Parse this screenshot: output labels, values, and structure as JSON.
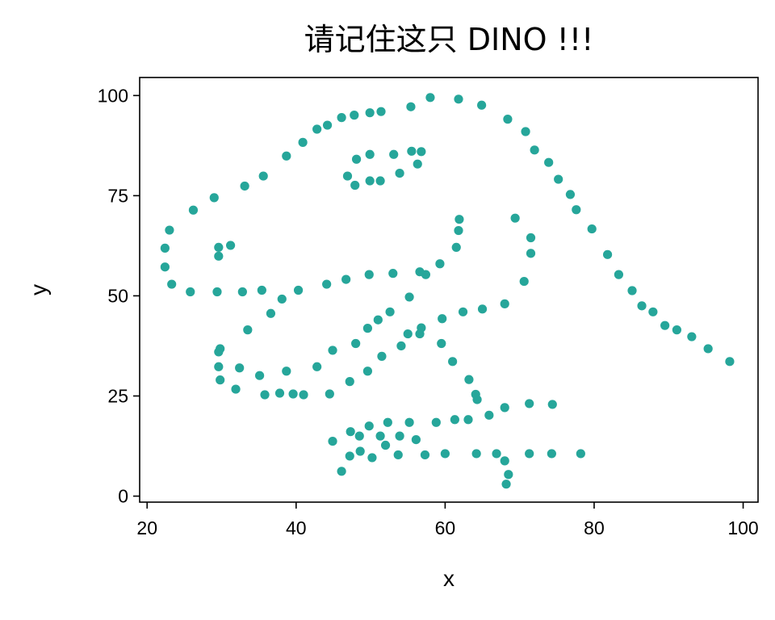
{
  "chart_data": {
    "type": "scatter",
    "title": "请记住这只 DINO !!!",
    "xlabel": "x",
    "ylabel": "y",
    "xlim": [
      19,
      102
    ],
    "ylim": [
      -1.5,
      104.5
    ],
    "xticks": [
      20,
      40,
      60,
      80,
      100
    ],
    "yticks": [
      0,
      25,
      50,
      75,
      100
    ],
    "xtick_labels": [
      "20",
      "40",
      "60",
      "80",
      "100"
    ],
    "ytick_labels": [
      "0",
      "25",
      "50",
      "75",
      "100"
    ],
    "grid": false,
    "legend": null,
    "marker_color": "#26a69a",
    "points": [
      [
        55.4,
        97.2
      ],
      [
        58.0,
        99.5
      ],
      [
        61.8,
        99.1
      ],
      [
        64.9,
        97.6
      ],
      [
        68.4,
        94.1
      ],
      [
        70.8,
        91.0
      ],
      [
        72.0,
        86.4
      ],
      [
        73.9,
        83.3
      ],
      [
        75.2,
        79.1
      ],
      [
        76.8,
        75.3
      ],
      [
        77.6,
        71.5
      ],
      [
        79.7,
        66.7
      ],
      [
        81.8,
        60.3
      ],
      [
        83.3,
        55.3
      ],
      [
        85.1,
        51.3
      ],
      [
        86.4,
        47.5
      ],
      [
        87.9,
        46.0
      ],
      [
        89.5,
        42.6
      ],
      [
        91.1,
        41.5
      ],
      [
        93.1,
        39.8
      ],
      [
        95.3,
        36.8
      ],
      [
        98.2,
        33.6
      ],
      [
        51.4,
        96.0
      ],
      [
        49.9,
        95.7
      ],
      [
        47.8,
        95.1
      ],
      [
        46.1,
        94.5
      ],
      [
        44.2,
        92.6
      ],
      [
        42.8,
        91.6
      ],
      [
        40.9,
        88.3
      ],
      [
        38.7,
        84.9
      ],
      [
        35.6,
        79.9
      ],
      [
        33.1,
        77.4
      ],
      [
        29.0,
        74.5
      ],
      [
        26.2,
        71.4
      ],
      [
        23.0,
        66.4
      ],
      [
        22.4,
        61.9
      ],
      [
        22.4,
        57.2
      ],
      [
        23.3,
        52.9
      ],
      [
        25.8,
        51.0
      ],
      [
        29.4,
        51.0
      ],
      [
        32.8,
        51.0
      ],
      [
        35.4,
        51.4
      ],
      [
        40.3,
        51.4
      ],
      [
        44.1,
        52.9
      ],
      [
        46.7,
        54.1
      ],
      [
        49.8,
        55.3
      ],
      [
        53.0,
        55.6
      ],
      [
        56.6,
        56.0
      ],
      [
        57.4,
        55.3
      ],
      [
        59.3,
        58.0
      ],
      [
        61.5,
        62.1
      ],
      [
        61.8,
        66.3
      ],
      [
        61.9,
        69.1
      ],
      [
        29.6,
        62.1
      ],
      [
        31.2,
        62.6
      ],
      [
        29.6,
        59.9
      ],
      [
        49.9,
        85.3
      ],
      [
        53.1,
        85.3
      ],
      [
        55.5,
        86.1
      ],
      [
        56.8,
        86.0
      ],
      [
        48.1,
        84.1
      ],
      [
        53.9,
        80.6
      ],
      [
        56.3,
        82.9
      ],
      [
        46.9,
        79.9
      ],
      [
        49.9,
        78.7
      ],
      [
        51.3,
        78.7
      ],
      [
        47.9,
        77.6
      ],
      [
        69.4,
        69.4
      ],
      [
        71.5,
        64.5
      ],
      [
        71.5,
        60.6
      ],
      [
        70.6,
        53.6
      ],
      [
        68.0,
        48.0
      ],
      [
        65.0,
        46.7
      ],
      [
        62.4,
        46.0
      ],
      [
        59.6,
        44.3
      ],
      [
        56.8,
        42.0
      ],
      [
        56.6,
        40.5
      ],
      [
        59.5,
        38.1
      ],
      [
        61.0,
        33.6
      ],
      [
        63.2,
        29.1
      ],
      [
        64.1,
        25.4
      ],
      [
        64.3,
        24.1
      ],
      [
        65.9,
        20.2
      ],
      [
        68.0,
        22.1
      ],
      [
        71.3,
        23.1
      ],
      [
        74.4,
        22.9
      ],
      [
        55.2,
        49.7
      ],
      [
        52.6,
        46.0
      ],
      [
        51.0,
        44.0
      ],
      [
        49.6,
        41.9
      ],
      [
        48.0,
        38.1
      ],
      [
        54.1,
        37.5
      ],
      [
        55.0,
        40.5
      ],
      [
        51.5,
        34.9
      ],
      [
        49.6,
        31.2
      ],
      [
        47.2,
        28.6
      ],
      [
        44.9,
        36.4
      ],
      [
        42.8,
        32.3
      ],
      [
        44.5,
        25.5
      ],
      [
        36.6,
        45.6
      ],
      [
        38.1,
        49.2
      ],
      [
        33.5,
        41.5
      ],
      [
        29.8,
        36.8
      ],
      [
        29.6,
        36.0
      ],
      [
        29.6,
        32.3
      ],
      [
        32.4,
        32.0
      ],
      [
        35.1,
        30.1
      ],
      [
        38.7,
        31.2
      ],
      [
        29.8,
        29.0
      ],
      [
        31.9,
        26.7
      ],
      [
        35.8,
        25.3
      ],
      [
        37.8,
        25.7
      ],
      [
        39.6,
        25.5
      ],
      [
        41.0,
        25.3
      ],
      [
        44.9,
        13.7
      ],
      [
        47.3,
        16.1
      ],
      [
        48.5,
        15.0
      ],
      [
        49.8,
        17.5
      ],
      [
        52.3,
        18.4
      ],
      [
        55.2,
        18.4
      ],
      [
        58.8,
        18.4
      ],
      [
        61.3,
        19.1
      ],
      [
        63.1,
        19.1
      ],
      [
        51.3,
        15.0
      ],
      [
        53.9,
        15.0
      ],
      [
        56.1,
        14.1
      ],
      [
        52.0,
        12.7
      ],
      [
        48.6,
        11.2
      ],
      [
        47.2,
        10.0
      ],
      [
        50.2,
        9.6
      ],
      [
        53.7,
        10.3
      ],
      [
        57.3,
        10.3
      ],
      [
        60.0,
        10.6
      ],
      [
        64.2,
        10.6
      ],
      [
        66.9,
        10.6
      ],
      [
        68.0,
        8.8
      ],
      [
        71.3,
        10.6
      ],
      [
        74.3,
        10.6
      ],
      [
        78.2,
        10.6
      ],
      [
        46.1,
        6.2
      ],
      [
        68.5,
        5.4
      ],
      [
        68.2,
        3.0
      ]
    ]
  }
}
